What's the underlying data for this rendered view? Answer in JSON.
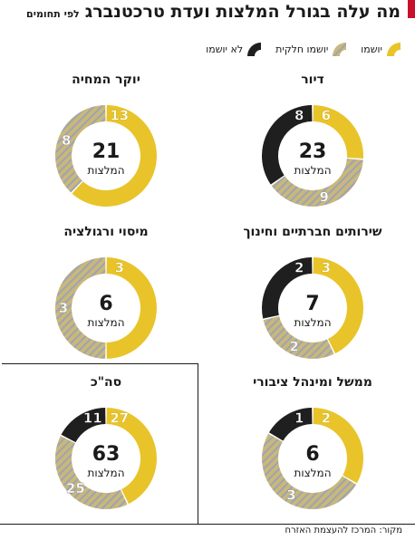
{
  "header": {
    "title": "מה עלה בגורל המלצות ועדת טרכטנברג",
    "subtitle": "לפי תחומים"
  },
  "legend": [
    {
      "key": "implemented",
      "label": "יושמו",
      "color": "#e8c42a"
    },
    {
      "key": "partial",
      "label": "יושמו חלקית",
      "color": "#c9b878"
    },
    {
      "key": "not_implemented",
      "label": "לא יושמו",
      "color": "#1f1f1f"
    }
  ],
  "center_unit": "המלצות",
  "source": "מקור: המרכז להעצמת האזרח",
  "chart_data": [
    {
      "type": "pie",
      "title": "דיור",
      "total": 23,
      "series": [
        {
          "name": "יושמו",
          "value": 6
        },
        {
          "name": "יושמו חלקית",
          "value": 9
        },
        {
          "name": "לא יושמו",
          "value": 8
        }
      ]
    },
    {
      "type": "pie",
      "title": "יוקר המחיה",
      "total": 21,
      "series": [
        {
          "name": "יושמו",
          "value": 13
        },
        {
          "name": "יושמו חלקית",
          "value": 8
        },
        {
          "name": "לא יושמו",
          "value": 0
        }
      ]
    },
    {
      "type": "pie",
      "title": "שירותים חברתיים וחינוך",
      "total": 7,
      "series": [
        {
          "name": "יושמו",
          "value": 3
        },
        {
          "name": "יושמו חלקית",
          "value": 2
        },
        {
          "name": "לא יושמו",
          "value": 2
        }
      ]
    },
    {
      "type": "pie",
      "title": "מיסוי ורגולציה",
      "total": 6,
      "series": [
        {
          "name": "יושמו",
          "value": 3
        },
        {
          "name": "יושמו חלקית",
          "value": 3
        },
        {
          "name": "לא יושמו",
          "value": 0
        }
      ]
    },
    {
      "type": "pie",
      "title": "ממשל ומינהל ציבורי",
      "total": 6,
      "series": [
        {
          "name": "יושמו",
          "value": 2
        },
        {
          "name": "יושמו חלקית",
          "value": 3
        },
        {
          "name": "לא יושמו",
          "value": 1
        }
      ]
    },
    {
      "type": "pie",
      "title": "סה\"כ",
      "total": 63,
      "series": [
        {
          "name": "יושמו",
          "value": 27
        },
        {
          "name": "יושמו חלקית",
          "value": 25
        },
        {
          "name": "לא יושמו",
          "value": 11
        }
      ]
    }
  ]
}
